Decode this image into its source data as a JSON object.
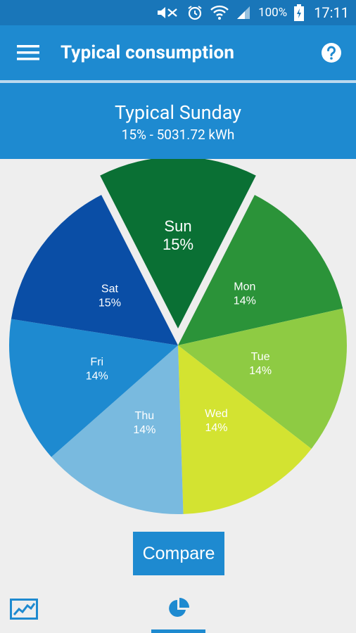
{
  "status": {
    "battery": "100%",
    "time": "17:11"
  },
  "app_bar": {
    "title": "Typical consumption"
  },
  "summary": {
    "day": "Typical Sunday",
    "value": "15% - 5031.72 kWh"
  },
  "chart_data": {
    "type": "pie",
    "highlighted": "Sun",
    "slices": [
      {
        "label": "Sun",
        "pct_label": "15%",
        "value": 15,
        "color": "#0a7034"
      },
      {
        "label": "Mon",
        "pct_label": "14%",
        "value": 14,
        "color": "#2b9339"
      },
      {
        "label": "Tue",
        "pct_label": "14%",
        "value": 14,
        "color": "#8ecb43"
      },
      {
        "label": "Wed",
        "pct_label": "14%",
        "value": 14,
        "color": "#d3e331"
      },
      {
        "label": "Thu",
        "pct_label": "14%",
        "value": 14,
        "color": "#79badf"
      },
      {
        "label": "Fri",
        "pct_label": "14%",
        "value": 14,
        "color": "#1e8ad0"
      },
      {
        "label": "Sat",
        "pct_label": "15%",
        "value": 15,
        "color": "#0a4ea6"
      }
    ]
  },
  "actions": {
    "compare_label": "Compare"
  },
  "colors": {
    "primary": "#1e8ad0",
    "status_bar": "#1976b9"
  }
}
